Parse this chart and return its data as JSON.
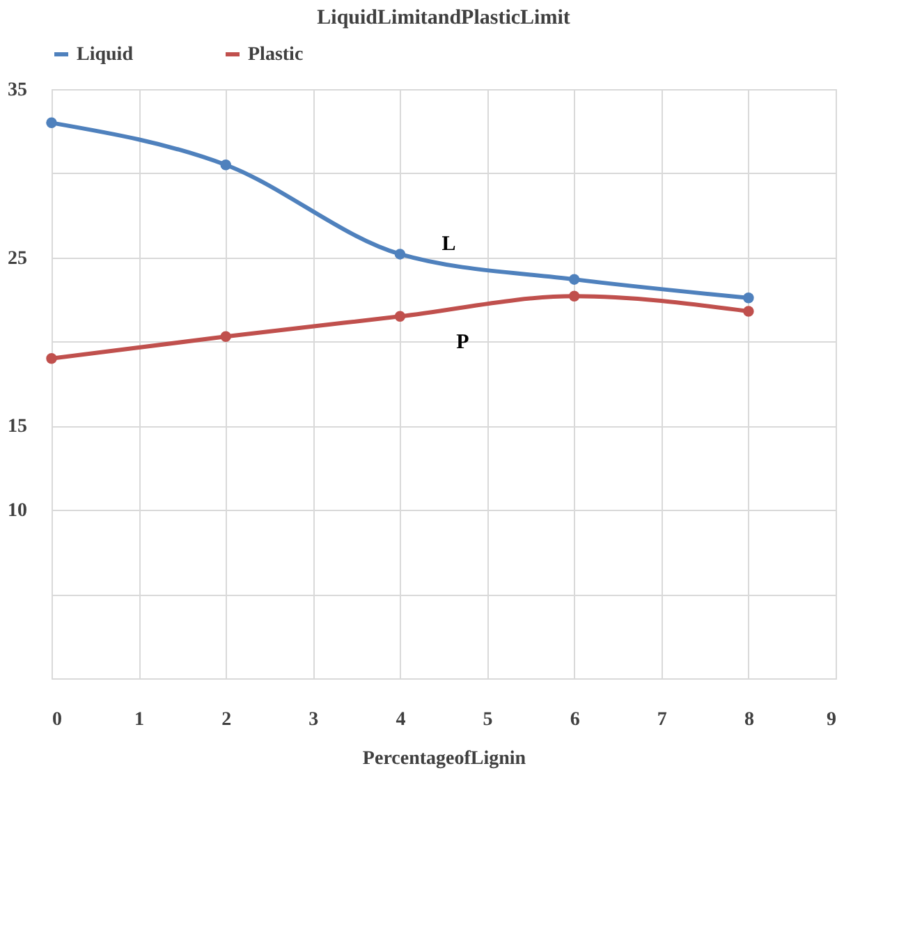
{
  "chart_data": {
    "type": "line",
    "title": "LiquidLimitandPlasticLimit",
    "xlabel": "PercentageofLignin",
    "x": [
      0,
      2,
      4,
      6,
      8
    ],
    "series": [
      {
        "name": "Liquid",
        "color": "#4f81bd",
        "values": [
          33.0,
          30.5,
          25.2,
          23.7,
          22.6
        ]
      },
      {
        "name": "Plastic",
        "color": "#c0504d",
        "values": [
          19.0,
          20.3,
          21.5,
          22.7,
          21.8
        ]
      }
    ],
    "xlim": [
      0,
      9
    ],
    "xticks": [
      0,
      1,
      2,
      3,
      4,
      5,
      6,
      7,
      8,
      9
    ],
    "ylim": [
      0,
      35
    ],
    "yticks": [
      {
        "value": 35,
        "label": "35"
      },
      {
        "value": 30,
        "label": null
      },
      {
        "value": 25,
        "label": "25"
      },
      {
        "value": 20,
        "label": null
      },
      {
        "value": 15,
        "label": "15"
      },
      {
        "value": 10,
        "label": "10"
      },
      {
        "value": 5,
        "label": null
      },
      {
        "value": 0,
        "label": null
      }
    ],
    "annotations": [
      "L",
      "P"
    ],
    "grid": true,
    "legend": "top",
    "marker": "circle",
    "line_style": "solid"
  }
}
